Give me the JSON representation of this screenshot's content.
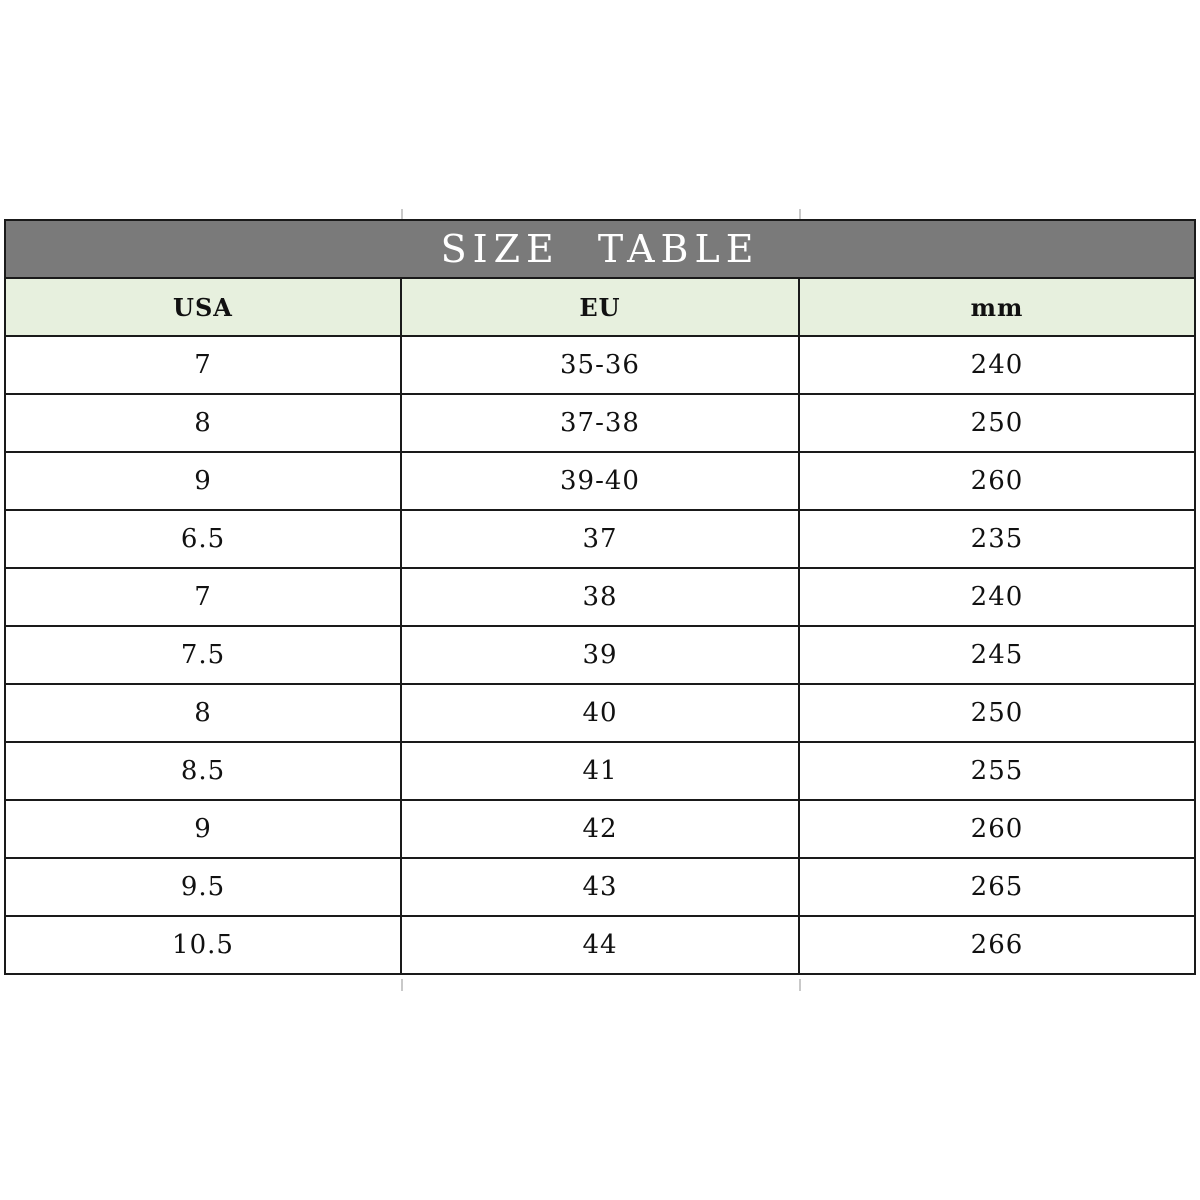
{
  "title": "SIZE TABLE",
  "colors": {
    "title_band_bg": "#7a7a7a",
    "title_text": "#ffffff",
    "header_row_bg": "#e7f0de",
    "border": "#1a1a1a",
    "cell_bg": "#ffffff",
    "cell_text": "#111111",
    "gridline_stub": "#c9c9c9"
  },
  "chart_data": {
    "type": "table",
    "title": "SIZE TABLE",
    "columns": [
      "USA",
      "EU",
      "mm"
    ],
    "rows": [
      [
        "7",
        "35-36",
        "240"
      ],
      [
        "8",
        "37-38",
        "250"
      ],
      [
        "9",
        "39-40",
        "260"
      ],
      [
        "6.5",
        "37",
        "235"
      ],
      [
        "7",
        "38",
        "240"
      ],
      [
        "7.5",
        "39",
        "245"
      ],
      [
        "8",
        "40",
        "250"
      ],
      [
        "8.5",
        "41",
        "255"
      ],
      [
        "9",
        "42",
        "260"
      ],
      [
        "9.5",
        "43",
        "265"
      ],
      [
        "10.5",
        "44",
        "266"
      ]
    ],
    "layout": {
      "header_style": "light-green band",
      "title_style": "gray band, white serif text",
      "grid": "on"
    }
  }
}
